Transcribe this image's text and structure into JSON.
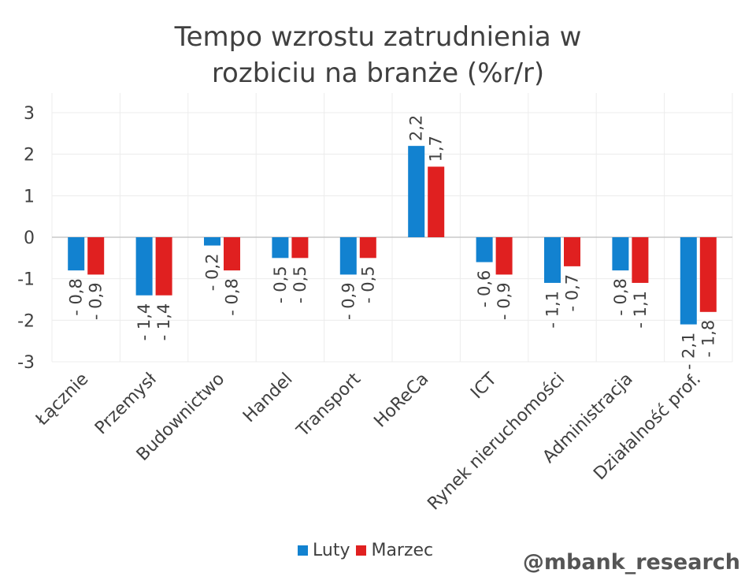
{
  "chart_data": {
    "type": "bar",
    "title_line1": "Tempo wzrostu zatrudnienia w",
    "title_line2": "rozbiciu na branże (%r/r)",
    "categories": [
      "Łącznie",
      "Przemysł",
      "Budownictwo",
      "Handel",
      "Transport",
      "HoReCa",
      "ICT",
      "Rynek nieruchomości",
      "Administracja",
      "Działalność prof."
    ],
    "series": [
      {
        "name": "Luty",
        "color": "#1282d0",
        "values": [
          -0.8,
          -1.4,
          -0.2,
          -0.5,
          -0.9,
          2.2,
          -0.6,
          -1.1,
          -0.8,
          -2.1
        ],
        "labels": [
          "- 0,8",
          "- 1,4",
          "- 0,2",
          "- 0,5",
          "- 0,9",
          "2,2",
          "- 0,6",
          "- 1,1",
          "- 0,8",
          "- 2,1"
        ]
      },
      {
        "name": "Marzec",
        "color": "#e02020",
        "values": [
          -0.9,
          -1.4,
          -0.8,
          -0.5,
          -0.5,
          1.7,
          -0.9,
          -0.7,
          -1.1,
          -1.8
        ],
        "labels": [
          "- 0,9",
          "- 1,4",
          "- 0,8",
          "- 0,5",
          "- 0,5",
          "1,7",
          "- 0,9",
          "- 0,7",
          "- 1,1",
          "- 1,8"
        ]
      }
    ],
    "ylim": [
      -3,
      3
    ],
    "yticks": [
      3,
      2,
      1,
      0,
      -1,
      -2,
      -3
    ],
    "ytick_labels": [
      "3",
      "2",
      "1",
      "0",
      "-1",
      "-2",
      "-3"
    ],
    "grid": true,
    "legend": "bottom"
  },
  "watermark": "@mbank_research"
}
